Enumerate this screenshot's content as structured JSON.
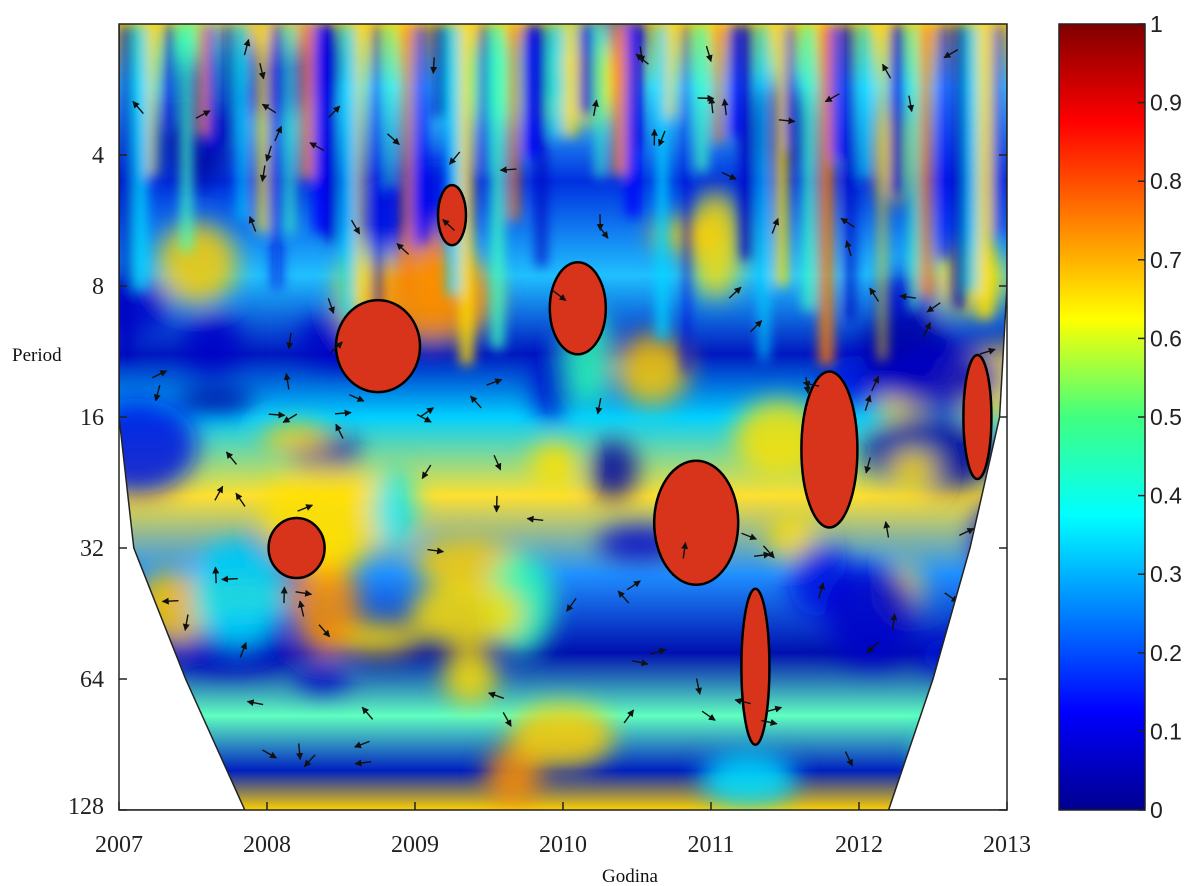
{
  "chart_data": {
    "type": "heatmap",
    "title": "",
    "xlabel": "Godina",
    "ylabel": "Period",
    "x_ticks": [
      "2007",
      "2008",
      "2009",
      "2010",
      "2011",
      "2012",
      "2013"
    ],
    "x_range": [
      2007,
      2013
    ],
    "y_ticks": [
      "4",
      "8",
      "16",
      "32",
      "64",
      "128"
    ],
    "y_scale": "log2",
    "y_range": [
      2,
      128
    ],
    "y_inverted": true,
    "colorbar": {
      "ticks": [
        "0",
        "0.1",
        "0.2",
        "0.3",
        "0.4",
        "0.5",
        "0.6",
        "0.7",
        "0.8",
        "0.9",
        "1"
      ],
      "range": [
        0,
        1
      ],
      "colormap": "jet"
    },
    "cone_of_influence": true,
    "significant_regions": [
      {
        "x": 2009.25,
        "period": 5.5
      },
      {
        "x": 2010.1,
        "period": 9
      },
      {
        "x": 2010.9,
        "period": 28
      },
      {
        "x": 2011.3,
        "period": 60
      },
      {
        "x": 2008.2,
        "period": 32
      },
      {
        "x": 2008.75,
        "period": 11
      },
      {
        "x": 2012.8,
        "period": 16
      },
      {
        "x": 2011.8,
        "period": 19
      }
    ],
    "colors": {
      "low": "#00008f",
      "mid": "#40ff80",
      "high": "#800000",
      "region_outline": "#000000"
    }
  }
}
